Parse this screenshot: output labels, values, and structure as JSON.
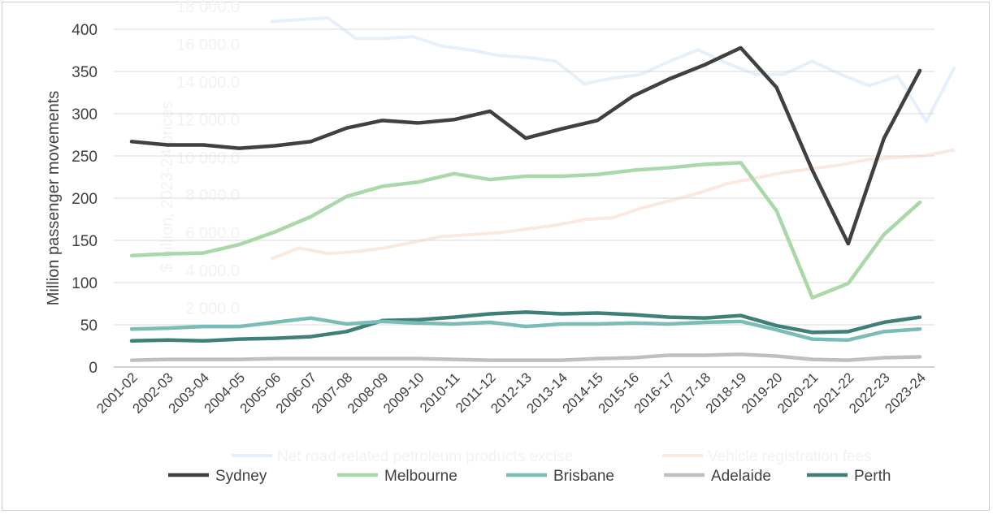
{
  "chart_data": [
    {
      "type": "line",
      "ylabel": "Million passenger movements",
      "xlabel": "",
      "ylim": [
        0,
        400
      ],
      "yticks": [
        0,
        50,
        100,
        150,
        200,
        250,
        300,
        350,
        400
      ],
      "grid": true,
      "legend": "bottom",
      "categories": [
        "2001-02",
        "2002-03",
        "2003-04",
        "2004-05",
        "2005-06",
        "2006-07",
        "2007-08",
        "2008-09",
        "2009-10",
        "2010-11",
        "2011-12",
        "2012-13",
        "2013-14",
        "2014-15",
        "2015-16",
        "2016-17",
        "2017-18",
        "2018-19",
        "2019-20",
        "2020-21",
        "2021-22",
        "2022-23",
        "2023-24"
      ],
      "series": [
        {
          "name": "Sydney",
          "color": "#404040",
          "values": [
            267,
            263,
            263,
            259,
            262,
            267,
            283,
            292,
            289,
            293,
            303,
            271,
            282,
            292,
            321,
            341,
            358,
            378,
            331,
            233,
            146,
            271,
            351
          ]
        },
        {
          "name": "Melbourne",
          "color": "#a9d8a9",
          "values": [
            132,
            134,
            135,
            145,
            160,
            178,
            202,
            214,
            219,
            229,
            222,
            226,
            226,
            228,
            233,
            236,
            240,
            242,
            185,
            82,
            99,
            157,
            195
          ]
        },
        {
          "name": "Brisbane",
          "color": "#79bcb8",
          "values": [
            45,
            46,
            48,
            48,
            53,
            58,
            51,
            54,
            52,
            51,
            53,
            48,
            51,
            51,
            52,
            51,
            53,
            54,
            44,
            33,
            32,
            42,
            45
          ]
        },
        {
          "name": "Adelaide",
          "color": "#bfbfbf",
          "values": [
            8,
            9,
            9,
            9,
            10,
            10,
            10,
            10,
            10,
            9,
            8,
            8,
            8,
            10,
            11,
            14,
            14,
            15,
            13,
            9,
            8,
            11,
            12
          ]
        },
        {
          "name": "Perth",
          "color": "#3f7f78",
          "values": [
            31,
            32,
            31,
            33,
            34,
            36,
            42,
            55,
            56,
            59,
            63,
            65,
            63,
            64,
            62,
            59,
            58,
            61,
            49,
            41,
            42,
            53,
            59
          ]
        }
      ]
    },
    {
      "type": "line",
      "background_ghost": true,
      "ylabel": "$ billion, 2023-24 prices",
      "yticks": [
        "2 000.0",
        "4 000.0",
        "6 000.0",
        "8 000.0",
        "10 000.0",
        "12 000.0",
        "14 000.0",
        "16 000.0",
        "18 000.0"
      ],
      "ylim": [
        0,
        18000
      ],
      "legend": "bottom",
      "series": [
        {
          "name": "Net road-related petroleum products excise",
          "color": "#e6f0fa",
          "values": [
            17200,
            17300,
            17400,
            16300,
            16300,
            16400,
            15900,
            15700,
            15400,
            15300,
            15100,
            13900,
            14200,
            14400,
            15100,
            15700,
            15000,
            14400,
            14400,
            15100,
            14400,
            13800,
            14300,
            11900,
            14800
          ]
        },
        {
          "name": "Vehicle registration fees",
          "color": "#fbe9df",
          "values": [
            4600,
            5200,
            4900,
            5000,
            5200,
            5500,
            5800,
            5900,
            6000,
            6200,
            6400,
            6700,
            6800,
            7300,
            7700,
            8100,
            8600,
            8900,
            9200,
            9400,
            9600,
            9900,
            10000,
            10100,
            10400
          ]
        }
      ]
    }
  ]
}
